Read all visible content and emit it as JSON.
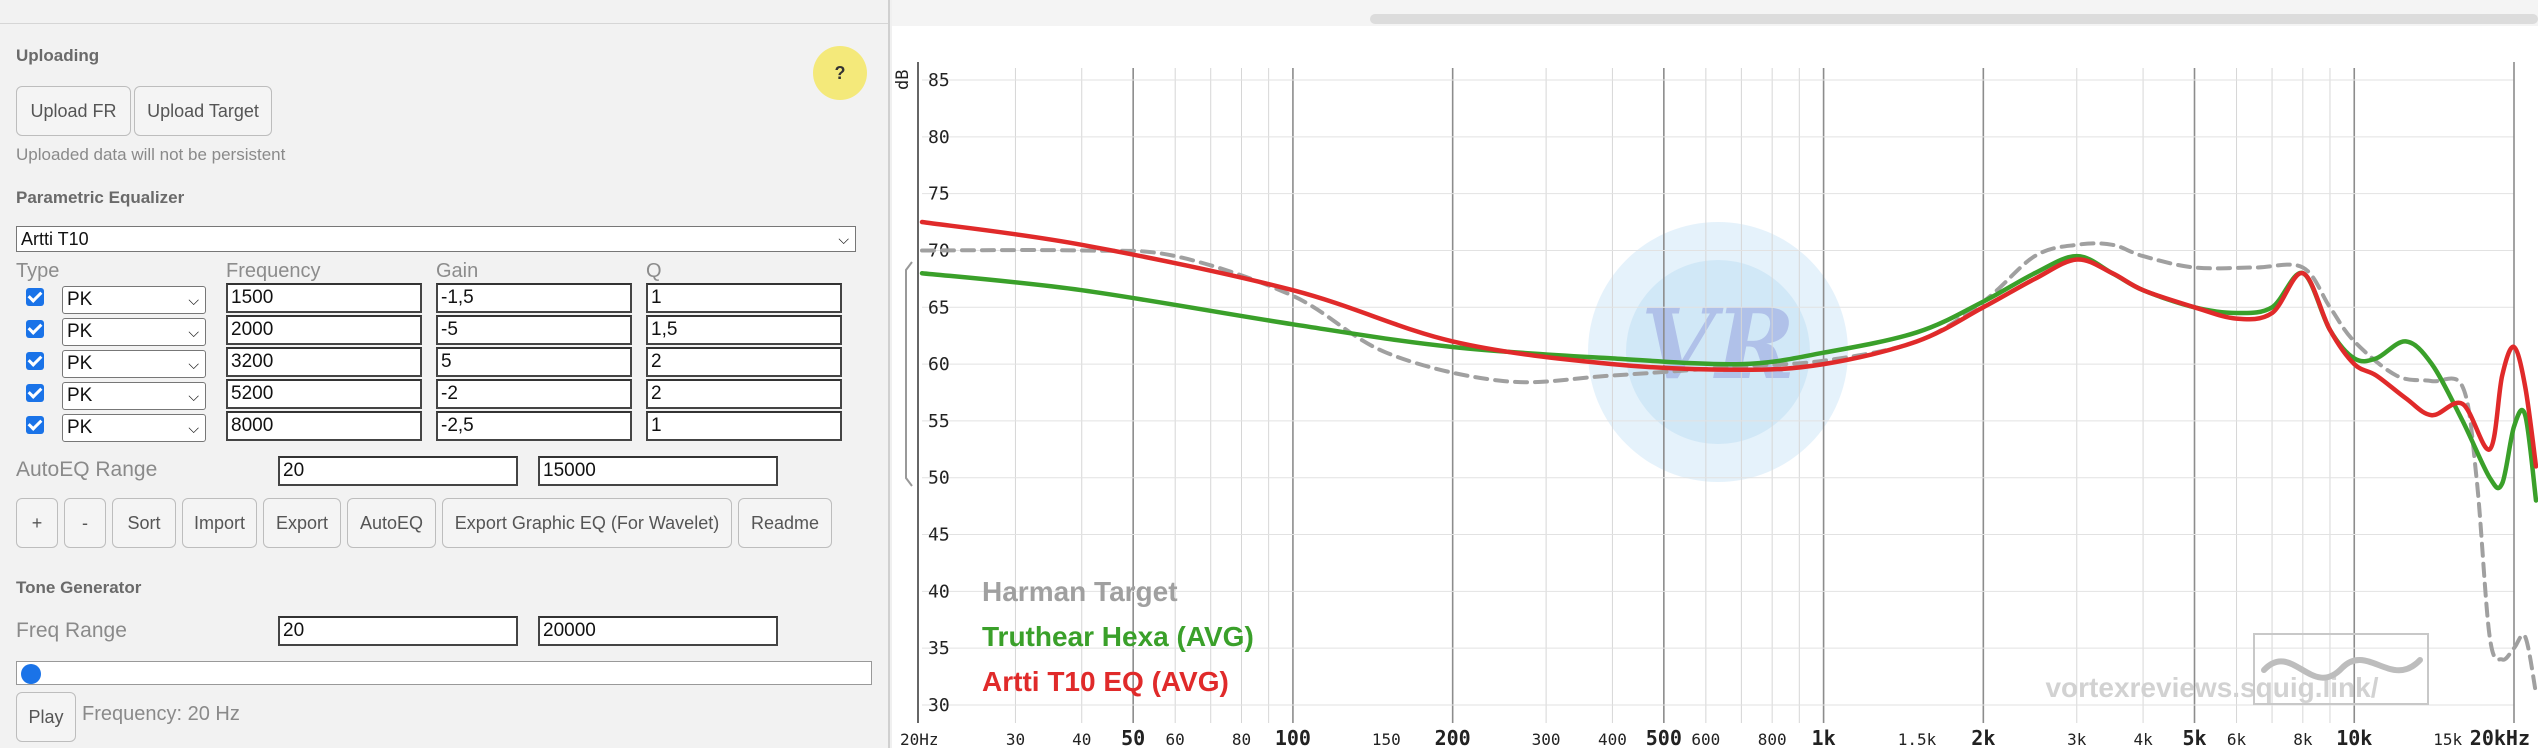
{
  "uploading": {
    "title": "Uploading",
    "upload_fr": "Upload FR",
    "upload_target": "Upload Target",
    "note": "Uploaded data will not be persistent",
    "help": "?"
  },
  "peq": {
    "title": "Parametric Equalizer",
    "preset": "Artti T10",
    "headers": {
      "type": "Type",
      "frequency": "Frequency",
      "gain": "Gain",
      "q": "Q"
    },
    "filters": [
      {
        "type": "PK",
        "freq": "1500",
        "gain": "-1,5",
        "q": "1"
      },
      {
        "type": "PK",
        "freq": "2000",
        "gain": "-5",
        "q": "1,5"
      },
      {
        "type": "PK",
        "freq": "3200",
        "gain": "5",
        "q": "2"
      },
      {
        "type": "PK",
        "freq": "5200",
        "gain": "-2",
        "q": "2"
      },
      {
        "type": "PK",
        "freq": "8000",
        "gain": "-2,5",
        "q": "1"
      }
    ],
    "autoeq_label": "AutoEQ Range",
    "autoeq_min": "20",
    "autoeq_max": "15000",
    "buttons": {
      "add": "+",
      "remove": "-",
      "sort": "Sort",
      "import": "Import",
      "export": "Export",
      "autoeq": "AutoEQ",
      "export_graphic": "Export Graphic EQ (For Wavelet)",
      "readme": "Readme"
    }
  },
  "tone": {
    "title": "Tone Generator",
    "range_label": "Freq Range",
    "min": "20",
    "max": "20000",
    "play": "Play",
    "frequency_text": "Frequency: 20 Hz",
    "slider_fraction": 0.0
  },
  "graph": {
    "watermark_text": "VR",
    "site": "vortexreviews.squig.link/",
    "legend": [
      {
        "name": "Harman Target",
        "color": "#a0a0a0"
      },
      {
        "name": "Truthear Hexa (AVG)",
        "color": "#3aa02a"
      },
      {
        "name": "Artti T10 EQ (AVG)",
        "color": "#e02a2a"
      }
    ]
  },
  "chart_data": {
    "type": "line",
    "ylabel": "dB",
    "ylim": [
      30,
      85
    ],
    "xlim": [
      20,
      20000
    ],
    "x_scale": "log",
    "y_ticks": [
      "85",
      "80",
      "75",
      "70",
      "65",
      "60",
      "55",
      "50",
      "45",
      "40",
      "35",
      "30"
    ],
    "x_ticks": [
      {
        "f": 20,
        "label": "20Hz"
      },
      {
        "f": 30,
        "label": "30"
      },
      {
        "f": 40,
        "label": "40"
      },
      {
        "f": 50,
        "label": "50"
      },
      {
        "f": 60,
        "label": "60"
      },
      {
        "f": 80,
        "label": "80"
      },
      {
        "f": 100,
        "label": "100"
      },
      {
        "f": 150,
        "label": "150"
      },
      {
        "f": 200,
        "label": "200"
      },
      {
        "f": 300,
        "label": "300"
      },
      {
        "f": 400,
        "label": "400"
      },
      {
        "f": 500,
        "label": "500"
      },
      {
        "f": 600,
        "label": "600"
      },
      {
        "f": 800,
        "label": "800"
      },
      {
        "f": 1000,
        "label": "1k"
      },
      {
        "f": 1500,
        "label": "1.5k"
      },
      {
        "f": 2000,
        "label": "2k"
      },
      {
        "f": 3000,
        "label": "3k"
      },
      {
        "f": 4000,
        "label": "4k"
      },
      {
        "f": 5000,
        "label": "5k"
      },
      {
        "f": 6000,
        "label": "6k"
      },
      {
        "f": 8000,
        "label": "8k"
      },
      {
        "f": 10000,
        "label": "10k"
      },
      {
        "f": 15000,
        "label": "15k"
      },
      {
        "f": 20000,
        "label": "20kHz"
      }
    ],
    "bold_ticks": [
      50,
      100,
      200,
      500,
      1000,
      2000,
      5000,
      10000,
      20000
    ],
    "series": [
      {
        "name": "Harman Target",
        "color": "#a0a0a0",
        "dashed": true,
        "points": [
          [
            20,
            70
          ],
          [
            40,
            70
          ],
          [
            60,
            69.5
          ],
          [
            100,
            66
          ],
          [
            150,
            61
          ],
          [
            250,
            58.5
          ],
          [
            400,
            59
          ],
          [
            700,
            59.8
          ],
          [
            1000,
            60.3
          ],
          [
            1500,
            62
          ],
          [
            2000,
            65.5
          ],
          [
            2500,
            69.5
          ],
          [
            3000,
            70.5
          ],
          [
            3500,
            70.5
          ],
          [
            4000,
            69.5
          ],
          [
            5000,
            68.5
          ],
          [
            6500,
            68.5
          ],
          [
            8000,
            68.5
          ],
          [
            9000,
            65
          ],
          [
            10000,
            62
          ],
          [
            12000,
            59
          ],
          [
            14000,
            58.5
          ],
          [
            16000,
            58
          ],
          [
            17000,
            50
          ],
          [
            18000,
            36
          ],
          [
            19000,
            34
          ],
          [
            20000,
            35
          ],
          [
            21000,
            36
          ],
          [
            22000,
            31
          ]
        ]
      },
      {
        "name": "Truthear Hexa (AVG)",
        "color": "#3aa02a",
        "points": [
          [
            20,
            68
          ],
          [
            40,
            66.5
          ],
          [
            100,
            63.5
          ],
          [
            200,
            61.5
          ],
          [
            400,
            60.5
          ],
          [
            700,
            60
          ],
          [
            1000,
            61
          ],
          [
            1500,
            62.8
          ],
          [
            2000,
            65.5
          ],
          [
            2500,
            68
          ],
          [
            3000,
            69.5
          ],
          [
            3500,
            68
          ],
          [
            4000,
            66.5
          ],
          [
            5000,
            65
          ],
          [
            6000,
            64.5
          ],
          [
            7000,
            65
          ],
          [
            8000,
            68
          ],
          [
            9000,
            63
          ],
          [
            10000,
            60.5
          ],
          [
            11000,
            60.5
          ],
          [
            12500,
            62
          ],
          [
            14000,
            60
          ],
          [
            16000,
            55
          ],
          [
            18000,
            50
          ],
          [
            19000,
            49.5
          ],
          [
            20000,
            54.5
          ],
          [
            21000,
            55.5
          ],
          [
            22000,
            48
          ]
        ]
      },
      {
        "name": "Artti T10 EQ (AVG)",
        "color": "#e02a2a",
        "points": [
          [
            20,
            72.5
          ],
          [
            40,
            70.5
          ],
          [
            100,
            66.5
          ],
          [
            200,
            62
          ],
          [
            400,
            60
          ],
          [
            700,
            59.5
          ],
          [
            1000,
            60
          ],
          [
            1500,
            62
          ],
          [
            2000,
            65
          ],
          [
            2500,
            67.5
          ],
          [
            3000,
            69.2
          ],
          [
            3500,
            68
          ],
          [
            4000,
            66.5
          ],
          [
            5000,
            65
          ],
          [
            6000,
            64
          ],
          [
            7000,
            64.5
          ],
          [
            8000,
            68
          ],
          [
            9000,
            63
          ],
          [
            10000,
            60
          ],
          [
            11000,
            59
          ],
          [
            12500,
            57
          ],
          [
            14000,
            55.5
          ],
          [
            16000,
            56.5
          ],
          [
            18000,
            52.5
          ],
          [
            19000,
            59
          ],
          [
            20000,
            61.5
          ],
          [
            21000,
            58
          ],
          [
            22000,
            51
          ]
        ]
      }
    ]
  }
}
